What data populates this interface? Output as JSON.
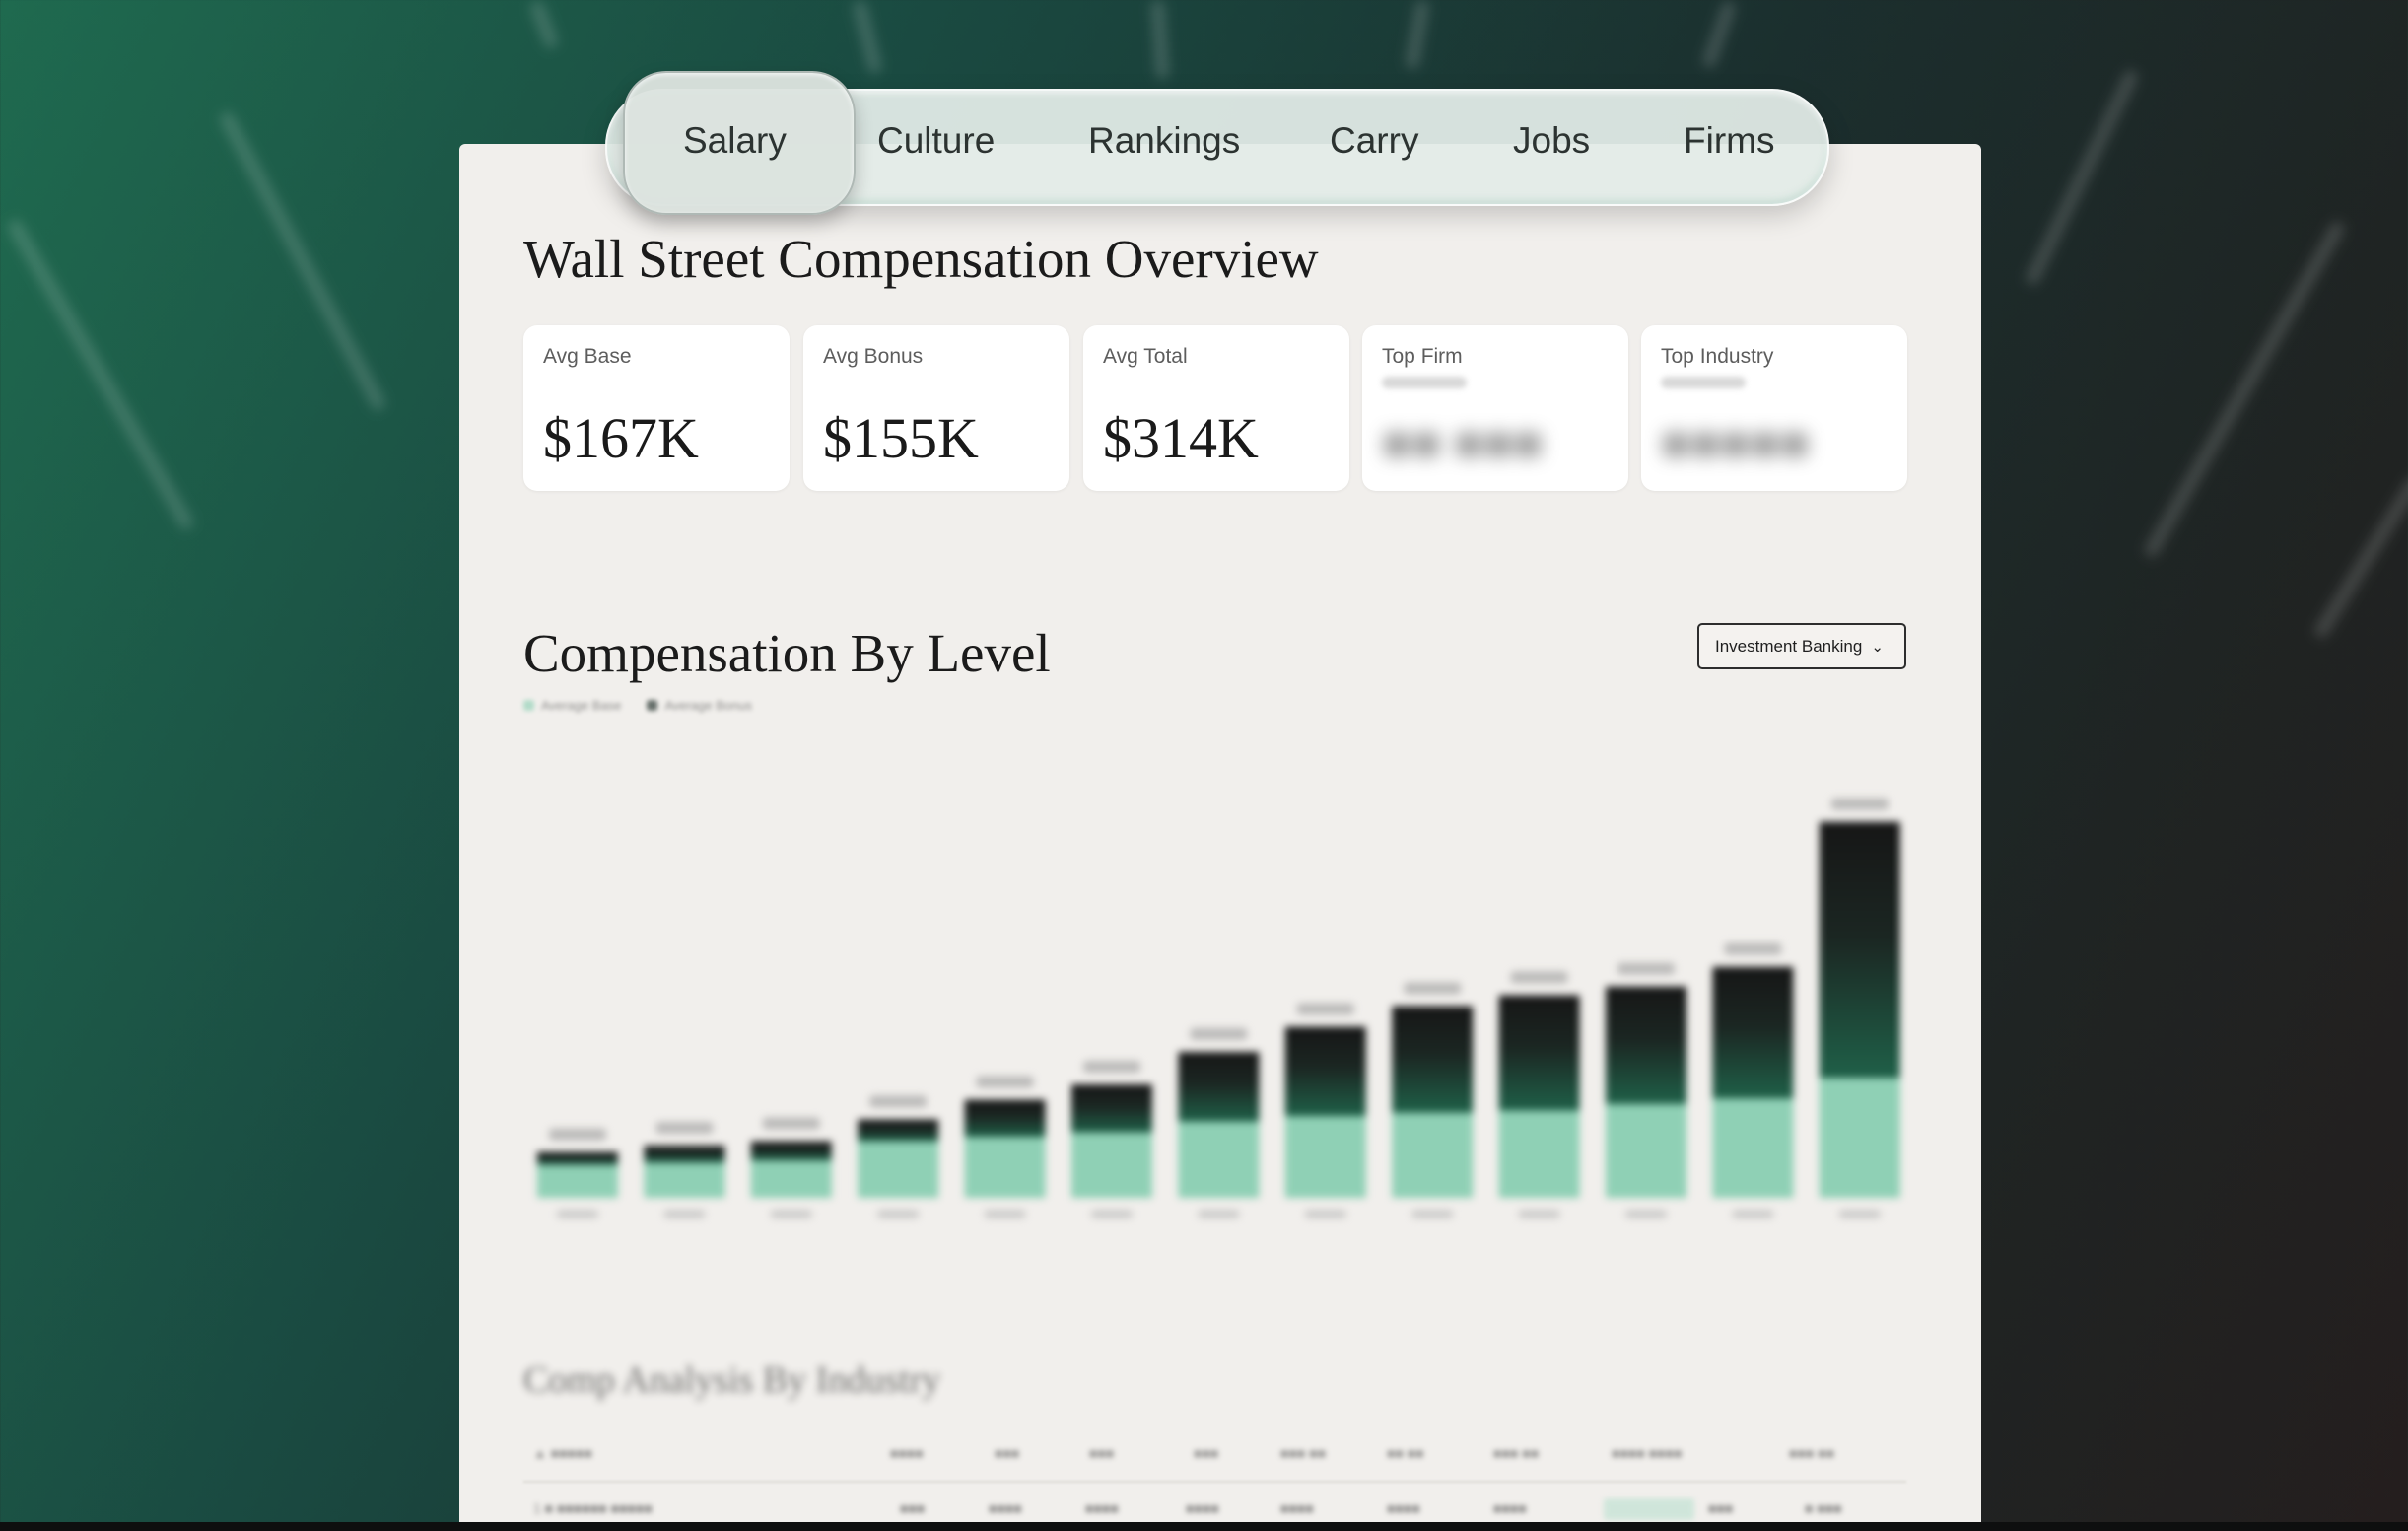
{
  "nav": {
    "tabs": [
      {
        "label": "Salary",
        "active": true
      },
      {
        "label": "Culture",
        "active": false
      },
      {
        "label": "Rankings",
        "active": false
      },
      {
        "label": "Carry",
        "active": false
      },
      {
        "label": "Jobs",
        "active": false
      },
      {
        "label": "Firms",
        "active": false
      }
    ]
  },
  "overview": {
    "title": "Wall Street Compensation Overview",
    "stats": [
      {
        "label": "Avg Base",
        "value": "$167K"
      },
      {
        "label": "Avg Bonus",
        "value": "$155K"
      },
      {
        "label": "Avg Total",
        "value": "$314K"
      },
      {
        "label": "Top Firm",
        "value": ""
      },
      {
        "label": "Top Industry",
        "value": ""
      }
    ]
  },
  "compensation": {
    "title": "Compensation By Level",
    "industry_select": {
      "value": "Investment Banking",
      "icon": "chevron-down-icon"
    },
    "legend": [
      {
        "name": "Average Base",
        "color": "#8fd0b5"
      },
      {
        "name": "Average Bonus",
        "color": "#1c2b26"
      }
    ]
  },
  "chart_data": {
    "type": "bar",
    "stacked": true,
    "categories": [
      "",
      "",
      "",
      "",
      "",
      "",
      "",
      "",
      "",
      "",
      "",
      "",
      ""
    ],
    "series": [
      {
        "name": "Average Base",
        "values": [
          30,
          32,
          34,
          52,
          56,
          60,
          70,
          75,
          78,
          80,
          86,
          91,
          110
        ]
      },
      {
        "name": "Average Bonus",
        "values": [
          12,
          16,
          18,
          20,
          34,
          44,
          64,
          82,
          98,
          106,
          108,
          121,
          235
        ]
      }
    ],
    "ylim": [
      0,
      380
    ],
    "colors": {
      "base": "#8fd0b5",
      "bonus_top": "#1a1a1a",
      "bonus_bottom": "#1d5a45"
    },
    "grid": false
  },
  "table": {
    "title": "Comp Analysis By Industry"
  }
}
